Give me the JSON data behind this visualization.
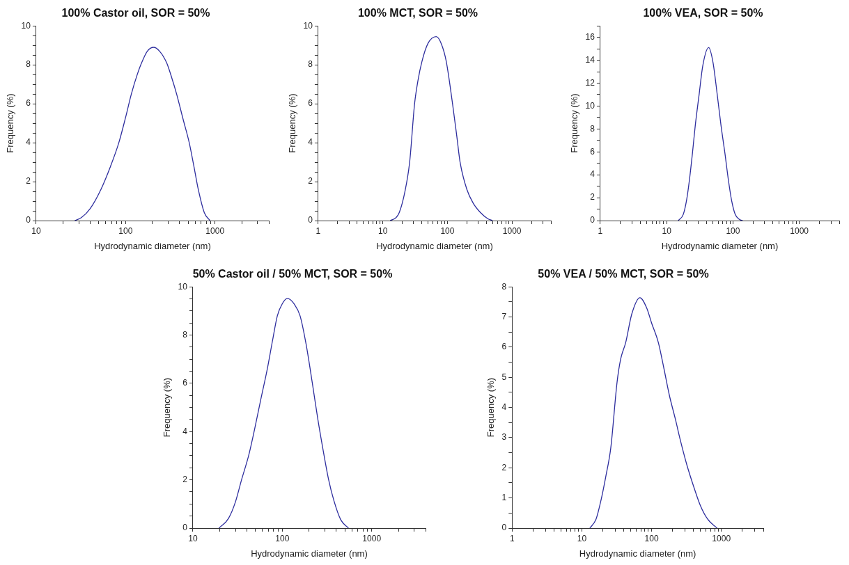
{
  "chart_data": [
    {
      "type": "line",
      "title": "100% Castor oil, SOR = 50%",
      "xlabel": "Hydrodynamic diameter (nm)",
      "ylabel": "Frequency (%)",
      "log": "x",
      "grid": false,
      "legend": false,
      "marker": "none",
      "line_style": "solid",
      "xlim": [
        10,
        4000
      ],
      "ylim": [
        0,
        10
      ],
      "xticks": [
        10,
        {
          "value": 20,
          "label": null
        },
        {
          "value": 30,
          "label": null
        },
        {
          "value": 40,
          "label": null
        },
        {
          "value": 50,
          "label": null
        },
        {
          "value": 60,
          "label": null
        },
        {
          "value": 70,
          "label": null
        },
        {
          "value": 80,
          "label": null
        },
        {
          "value": 90,
          "label": null
        },
        100,
        {
          "value": 200,
          "label": null
        },
        {
          "value": 300,
          "label": null
        },
        {
          "value": 400,
          "label": null
        },
        {
          "value": 500,
          "label": null
        },
        {
          "value": 600,
          "label": null
        },
        {
          "value": 700,
          "label": null
        },
        {
          "value": 800,
          "label": null
        },
        {
          "value": 900,
          "label": null
        },
        1000,
        {
          "value": 2000,
          "label": null
        },
        {
          "value": 3000,
          "label": null
        },
        {
          "value": 4000,
          "label": null
        }
      ],
      "yticks": [
        0,
        {
          "value": 0.5,
          "label": null
        },
        {
          "value": 1,
          "label": null
        },
        {
          "value": 1.5,
          "label": null
        },
        2,
        {
          "value": 2.5,
          "label": null
        },
        {
          "value": 3,
          "label": null
        },
        {
          "value": 3.5,
          "label": null
        },
        4,
        {
          "value": 4.5,
          "label": null
        },
        {
          "value": 5,
          "label": null
        },
        {
          "value": 5.5,
          "label": null
        },
        6,
        {
          "value": 6.5,
          "label": null
        },
        {
          "value": 7,
          "label": null
        },
        {
          "value": 7.5,
          "label": null
        },
        8,
        {
          "value": 8.5,
          "label": null
        },
        {
          "value": 9,
          "label": null
        },
        {
          "value": 9.5,
          "label": null
        },
        10
      ],
      "series": [
        {
          "color": "#2e2e9e",
          "x": [
            27,
            32,
            40,
            53,
            68,
            84,
            100,
            116,
            135,
            151,
            175,
            206,
            240,
            288,
            330,
            372,
            440,
            515,
            580,
            650,
            760,
            880
          ],
          "values": [
            0,
            0.15,
            0.6,
            1.6,
            2.8,
            4.0,
            5.3,
            6.5,
            7.5,
            8.1,
            8.7,
            8.9,
            8.7,
            8.1,
            7.3,
            6.5,
            5.2,
            4.0,
            2.8,
            1.6,
            0.4,
            0
          ]
        }
      ]
    },
    {
      "type": "line",
      "title": "100% MCT, SOR = 50%",
      "xlabel": "Hydrodynamic diameter (nm)",
      "ylabel": "Frequency (%)",
      "log": "x",
      "grid": false,
      "legend": false,
      "marker": "none",
      "line_style": "solid",
      "xlim": [
        1,
        4000
      ],
      "ylim": [
        0,
        10
      ],
      "xticks": [
        1,
        {
          "value": 2,
          "label": null
        },
        {
          "value": 3,
          "label": null
        },
        {
          "value": 4,
          "label": null
        },
        {
          "value": 5,
          "label": null
        },
        {
          "value": 6,
          "label": null
        },
        {
          "value": 7,
          "label": null
        },
        {
          "value": 8,
          "label": null
        },
        {
          "value": 9,
          "label": null
        },
        10,
        {
          "value": 20,
          "label": null
        },
        {
          "value": 30,
          "label": null
        },
        {
          "value": 40,
          "label": null
        },
        {
          "value": 50,
          "label": null
        },
        {
          "value": 60,
          "label": null
        },
        {
          "value": 70,
          "label": null
        },
        {
          "value": 80,
          "label": null
        },
        {
          "value": 90,
          "label": null
        },
        100,
        {
          "value": 200,
          "label": null
        },
        {
          "value": 300,
          "label": null
        },
        {
          "value": 400,
          "label": null
        },
        {
          "value": 500,
          "label": null
        },
        {
          "value": 600,
          "label": null
        },
        {
          "value": 700,
          "label": null
        },
        {
          "value": 800,
          "label": null
        },
        {
          "value": 900,
          "label": null
        },
        1000,
        {
          "value": 2000,
          "label": null
        },
        {
          "value": 3000,
          "label": null
        },
        {
          "value": 4000,
          "label": null
        }
      ],
      "yticks": [
        0,
        {
          "value": 0.5,
          "label": null
        },
        {
          "value": 1,
          "label": null
        },
        {
          "value": 1.5,
          "label": null
        },
        2,
        {
          "value": 2.5,
          "label": null
        },
        {
          "value": 3,
          "label": null
        },
        {
          "value": 3.5,
          "label": null
        },
        4,
        {
          "value": 4.5,
          "label": null
        },
        {
          "value": 5,
          "label": null
        },
        {
          "value": 5.5,
          "label": null
        },
        6,
        {
          "value": 6.5,
          "label": null
        },
        {
          "value": 7,
          "label": null
        },
        {
          "value": 7.5,
          "label": null
        },
        8,
        {
          "value": 8.5,
          "label": null
        },
        {
          "value": 9,
          "label": null
        },
        {
          "value": 9.5,
          "label": null
        },
        10
      ],
      "series": [
        {
          "color": "#2e2e9e",
          "x": [
            13,
            16,
            18,
            22,
            26,
            31,
            35,
            40.5,
            50,
            67,
            80,
            95.6,
            120,
            140,
            157,
            200,
            250,
            323,
            420,
            500
          ],
          "values": [
            0,
            0.15,
            0.42,
            1.5,
            3.0,
            6.0,
            7.2,
            8.2,
            9.1,
            9.45,
            9.1,
            8.2,
            6.0,
            4.3,
            3.0,
            1.6,
            0.9,
            0.42,
            0.1,
            0
          ]
        }
      ]
    },
    {
      "type": "line",
      "title": "100% VEA, SOR = 50%",
      "xlabel": "Hydrodynamic diameter (nm)",
      "ylabel": "Frequency (%)",
      "log": "x",
      "grid": false,
      "legend": false,
      "marker": "none",
      "line_style": "solid",
      "xlim": [
        1,
        4000
      ],
      "ylim": [
        0,
        17
      ],
      "xticks": [
        1,
        {
          "value": 2,
          "label": null
        },
        {
          "value": 3,
          "label": null
        },
        {
          "value": 4,
          "label": null
        },
        {
          "value": 5,
          "label": null
        },
        {
          "value": 6,
          "label": null
        },
        {
          "value": 7,
          "label": null
        },
        {
          "value": 8,
          "label": null
        },
        {
          "value": 9,
          "label": null
        },
        10,
        {
          "value": 20,
          "label": null
        },
        {
          "value": 30,
          "label": null
        },
        {
          "value": 40,
          "label": null
        },
        {
          "value": 50,
          "label": null
        },
        {
          "value": 60,
          "label": null
        },
        {
          "value": 70,
          "label": null
        },
        {
          "value": 80,
          "label": null
        },
        {
          "value": 90,
          "label": null
        },
        100,
        {
          "value": 200,
          "label": null
        },
        {
          "value": 300,
          "label": null
        },
        {
          "value": 400,
          "label": null
        },
        {
          "value": 500,
          "label": null
        },
        {
          "value": 600,
          "label": null
        },
        {
          "value": 700,
          "label": null
        },
        {
          "value": 800,
          "label": null
        },
        {
          "value": 900,
          "label": null
        },
        1000,
        {
          "value": 2000,
          "label": null
        },
        {
          "value": 3000,
          "label": null
        },
        {
          "value": 4000,
          "label": null
        }
      ],
      "yticks": [
        0,
        {
          "value": 1,
          "label": null
        },
        2,
        {
          "value": 3,
          "label": null
        },
        4,
        {
          "value": 5,
          "label": null
        },
        6,
        {
          "value": 7,
          "label": null
        },
        8,
        {
          "value": 9,
          "label": null
        },
        10,
        {
          "value": 11,
          "label": null
        },
        12,
        {
          "value": 13,
          "label": null
        },
        14,
        {
          "value": 15,
          "label": null
        },
        16,
        {
          "value": 17,
          "label": null
        }
      ],
      "series": [
        {
          "color": "#2e2e9e",
          "x": [
            15,
            17.8,
            20,
            22,
            24.5,
            27,
            31,
            35,
            43,
            50,
            57.6,
            66,
            75.5,
            85,
            95,
            108,
            125,
            140
          ],
          "values": [
            0,
            0.54,
            1.8,
            3.5,
            5.9,
            8.3,
            11.1,
            13.5,
            15.1,
            13.8,
            11.1,
            8.3,
            5.9,
            3.6,
            1.8,
            0.54,
            0.1,
            0
          ]
        }
      ]
    },
    {
      "type": "line",
      "title": "50% Castor oil / 50% MCT, SOR = 50%",
      "xlabel": "Hydrodynamic diameter (nm)",
      "ylabel": "Frequency (%)",
      "log": "x",
      "grid": false,
      "legend": false,
      "marker": "none",
      "line_style": "solid",
      "xlim": [
        10,
        4000
      ],
      "ylim": [
        0,
        10
      ],
      "xticks": [
        10,
        {
          "value": 20,
          "label": null
        },
        {
          "value": 30,
          "label": null
        },
        {
          "value": 40,
          "label": null
        },
        {
          "value": 50,
          "label": null
        },
        {
          "value": 60,
          "label": null
        },
        {
          "value": 70,
          "label": null
        },
        {
          "value": 80,
          "label": null
        },
        {
          "value": 90,
          "label": null
        },
        100,
        {
          "value": 200,
          "label": null
        },
        {
          "value": 300,
          "label": null
        },
        {
          "value": 400,
          "label": null
        },
        {
          "value": 500,
          "label": null
        },
        {
          "value": 600,
          "label": null
        },
        {
          "value": 700,
          "label": null
        },
        {
          "value": 800,
          "label": null
        },
        {
          "value": 900,
          "label": null
        },
        1000,
        {
          "value": 2000,
          "label": null
        },
        {
          "value": 3000,
          "label": null
        },
        {
          "value": 4000,
          "label": null
        }
      ],
      "yticks": [
        0,
        {
          "value": 0.5,
          "label": null
        },
        {
          "value": 1,
          "label": null
        },
        {
          "value": 1.5,
          "label": null
        },
        2,
        {
          "value": 2.5,
          "label": null
        },
        {
          "value": 3,
          "label": null
        },
        {
          "value": 3.5,
          "label": null
        },
        4,
        {
          "value": 4.5,
          "label": null
        },
        {
          "value": 5,
          "label": null
        },
        {
          "value": 5.5,
          "label": null
        },
        6,
        {
          "value": 6.5,
          "label": null
        },
        {
          "value": 7,
          "label": null
        },
        {
          "value": 7.5,
          "label": null
        },
        8,
        {
          "value": 8.5,
          "label": null
        },
        {
          "value": 9,
          "label": null
        },
        {
          "value": 9.5,
          "label": null
        },
        10
      ],
      "series": [
        {
          "color": "#2e2e9e",
          "x": [
            19.6,
            25,
            30,
            35,
            42,
            49,
            58,
            68,
            78,
            88,
            100,
            114,
            135,
            158,
            185,
            219,
            250,
            284,
            330,
            377,
            450,
            550
          ],
          "values": [
            0,
            0.4,
            1.1,
            2.0,
            3.0,
            4.1,
            5.4,
            6.6,
            7.8,
            8.8,
            9.3,
            9.52,
            9.3,
            8.8,
            7.6,
            5.9,
            4.5,
            3.3,
            2.0,
            1.15,
            0.35,
            0
          ]
        }
      ]
    },
    {
      "type": "line",
      "title": "50% VEA / 50% MCT, SOR = 50%",
      "xlabel": "Hydrodynamic diameter (nm)",
      "ylabel": "Frequency (%)",
      "log": "x",
      "grid": false,
      "legend": false,
      "marker": "none",
      "line_style": "solid",
      "xlim": [
        1,
        4000
      ],
      "ylim": [
        0,
        8
      ],
      "xticks": [
        1,
        {
          "value": 2,
          "label": null
        },
        {
          "value": 3,
          "label": null
        },
        {
          "value": 4,
          "label": null
        },
        {
          "value": 5,
          "label": null
        },
        {
          "value": 6,
          "label": null
        },
        {
          "value": 7,
          "label": null
        },
        {
          "value": 8,
          "label": null
        },
        {
          "value": 9,
          "label": null
        },
        10,
        {
          "value": 20,
          "label": null
        },
        {
          "value": 30,
          "label": null
        },
        {
          "value": 40,
          "label": null
        },
        {
          "value": 50,
          "label": null
        },
        {
          "value": 60,
          "label": null
        },
        {
          "value": 70,
          "label": null
        },
        {
          "value": 80,
          "label": null
        },
        {
          "value": 90,
          "label": null
        },
        100,
        {
          "value": 200,
          "label": null
        },
        {
          "value": 300,
          "label": null
        },
        {
          "value": 400,
          "label": null
        },
        {
          "value": 500,
          "label": null
        },
        {
          "value": 600,
          "label": null
        },
        {
          "value": 700,
          "label": null
        },
        {
          "value": 800,
          "label": null
        },
        {
          "value": 900,
          "label": null
        },
        1000,
        {
          "value": 2000,
          "label": null
        },
        {
          "value": 3000,
          "label": null
        },
        {
          "value": 4000,
          "label": null
        }
      ],
      "yticks": [
        0,
        {
          "value": 0.5,
          "label": null
        },
        1,
        {
          "value": 1.5,
          "label": null
        },
        2,
        {
          "value": 2.5,
          "label": null
        },
        3,
        {
          "value": 3.5,
          "label": null
        },
        4,
        {
          "value": 4.5,
          "label": null
        },
        5,
        {
          "value": 5.5,
          "label": null
        },
        6,
        {
          "value": 6.5,
          "label": null
        },
        7,
        {
          "value": 7.5,
          "label": null
        },
        8
      ],
      "series": [
        {
          "color": "#2e2e9e",
          "x": [
            13,
            16,
            18.8,
            22,
            26,
            32,
            36,
            42.5,
            52,
            68,
            85,
            100,
            125,
            150,
            180,
            220,
            258,
            320,
            405,
            500,
            635,
            870
          ],
          "values": [
            0,
            0.3,
            0.92,
            1.7,
            2.66,
            4.84,
            5.6,
            6.15,
            7.1,
            7.64,
            7.3,
            6.8,
            6.15,
            5.3,
            4.4,
            3.6,
            2.92,
            2.1,
            1.35,
            0.75,
            0.3,
            0
          ]
        }
      ]
    }
  ]
}
